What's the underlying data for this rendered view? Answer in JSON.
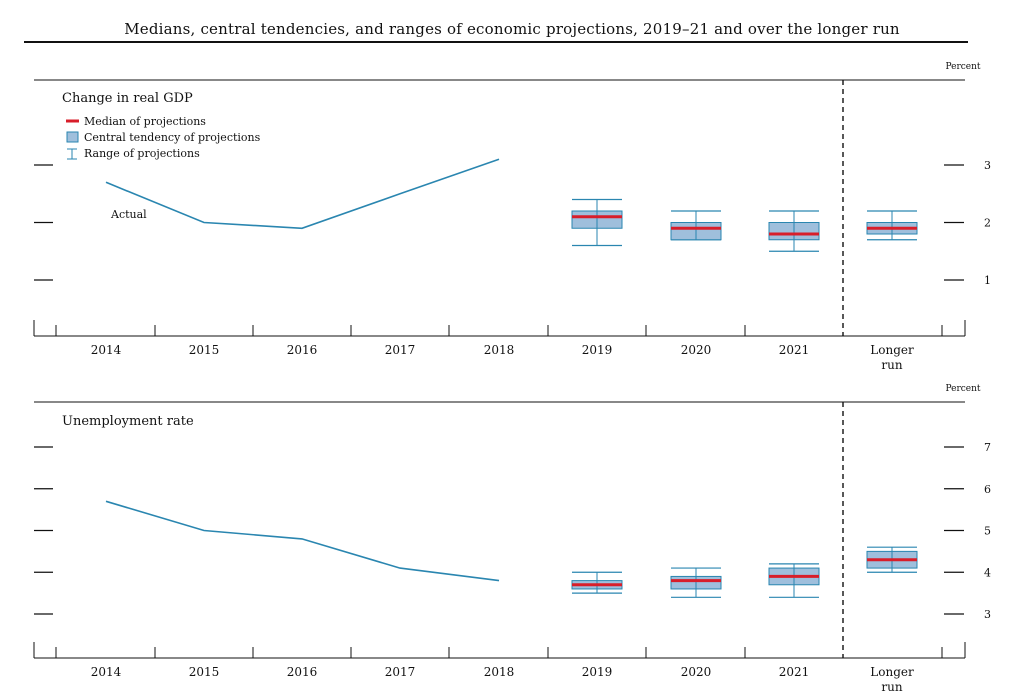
{
  "figure_title": "Medians, central tendencies, and ranges of economic projections, 2019–21 and over the longer run",
  "legend": {
    "median": "Median of projections",
    "central": "Central tendency of projections",
    "range": "Range of projections"
  },
  "colors": {
    "actual_line": "#2a86b0",
    "median": "#d81e2a",
    "central_fill": "#9fbfdc",
    "central_stroke": "#2a86b0",
    "range": "#2a86b0",
    "axis": "#111111"
  },
  "x_labels": [
    "2014",
    "2015",
    "2016",
    "2017",
    "2018",
    "2019",
    "2020",
    "2021",
    "Longer run"
  ],
  "chart_data": [
    {
      "type": "line",
      "title": "Change in real GDP",
      "unit_label": "Percent",
      "actual_label": "Actual",
      "ylim": [
        0,
        4
      ],
      "yticks": [
        1,
        2,
        3
      ],
      "actual": {
        "x": [
          "2014",
          "2015",
          "2016",
          "2017",
          "2018"
        ],
        "y": [
          2.7,
          2.0,
          1.9,
          2.5,
          3.1
        ]
      },
      "projections": [
        {
          "x": "2019",
          "median": 2.1,
          "central_low": 1.9,
          "central_high": 2.2,
          "range_low": 1.6,
          "range_high": 2.4
        },
        {
          "x": "2020",
          "median": 1.9,
          "central_low": 1.7,
          "central_high": 2.0,
          "range_low": 1.7,
          "range_high": 2.2
        },
        {
          "x": "2021",
          "median": 1.8,
          "central_low": 1.7,
          "central_high": 2.0,
          "range_low": 1.5,
          "range_high": 2.2
        },
        {
          "x": "Longer run",
          "median": 1.9,
          "central_low": 1.8,
          "central_high": 2.0,
          "range_low": 1.7,
          "range_high": 2.2
        }
      ]
    },
    {
      "type": "line",
      "title": "Unemployment rate",
      "unit_label": "Percent",
      "ylim": [
        2.6,
        8.0
      ],
      "yticks": [
        3,
        4,
        5,
        6,
        7
      ],
      "actual": {
        "x": [
          "2014",
          "2015",
          "2016",
          "2017",
          "2018"
        ],
        "y": [
          5.7,
          5.0,
          4.8,
          4.1,
          3.8
        ]
      },
      "projections": [
        {
          "x": "2019",
          "median": 3.7,
          "central_low": 3.6,
          "central_high": 3.8,
          "range_low": 3.5,
          "range_high": 4.0
        },
        {
          "x": "2020",
          "median": 3.8,
          "central_low": 3.6,
          "central_high": 3.9,
          "range_low": 3.4,
          "range_high": 4.1
        },
        {
          "x": "2021",
          "median": 3.9,
          "central_low": 3.7,
          "central_high": 4.1,
          "range_low": 3.4,
          "range_high": 4.2
        },
        {
          "x": "Longer run",
          "median": 4.3,
          "central_low": 4.1,
          "central_high": 4.5,
          "range_low": 4.0,
          "range_high": 4.6
        }
      ]
    }
  ]
}
